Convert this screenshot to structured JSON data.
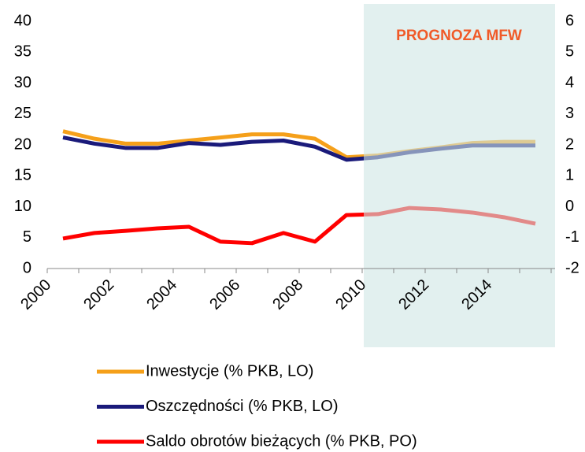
{
  "chart_data": {
    "type": "line",
    "annotation": "PROGNOZA MFW",
    "categories": [
      "2000",
      null,
      "2002",
      null,
      "2004",
      null,
      "2006",
      null,
      "2008",
      null,
      "2010",
      null,
      "2012",
      null,
      "2014",
      null
    ],
    "series": [
      {
        "name": "Inwestycje (% PKB, LO)",
        "color": "#f5a01a",
        "values": [
          22.2,
          21.0,
          20.2,
          20.2,
          20.7,
          21.2,
          21.7,
          21.7,
          21.0,
          18.0,
          18.3,
          19.0,
          19.6,
          20.3,
          20.5,
          20.5
        ]
      },
      {
        "name": "Oszczędności (% PKB, LO)",
        "color": "#1a1a7a",
        "values": [
          21.2,
          20.2,
          19.5,
          19.5,
          20.3,
          20.0,
          20.5,
          20.7,
          19.7,
          17.6,
          18.0,
          18.8,
          19.4,
          19.9,
          19.9,
          19.9
        ]
      },
      {
        "name": "Saldo obrotów bieżących (% PKB, PO)",
        "color": "#ff0000",
        "axis": "y2",
        "values": [
          -1.03,
          -0.85,
          -0.78,
          -0.7,
          -0.65,
          -1.13,
          -1.18,
          -0.85,
          -1.13,
          -0.27,
          -0.24,
          -0.04,
          -0.09,
          -0.19,
          -0.34,
          -0.55
        ]
      }
    ],
    "ylim": [
      0,
      40
    ],
    "yticks": [
      0,
      5,
      10,
      15,
      20,
      25,
      30,
      35,
      40
    ],
    "y2lim": [
      -2,
      6
    ],
    "y2ticks": [
      -2,
      -1,
      0,
      1,
      2,
      3,
      4,
      5,
      6
    ],
    "grid": false
  }
}
